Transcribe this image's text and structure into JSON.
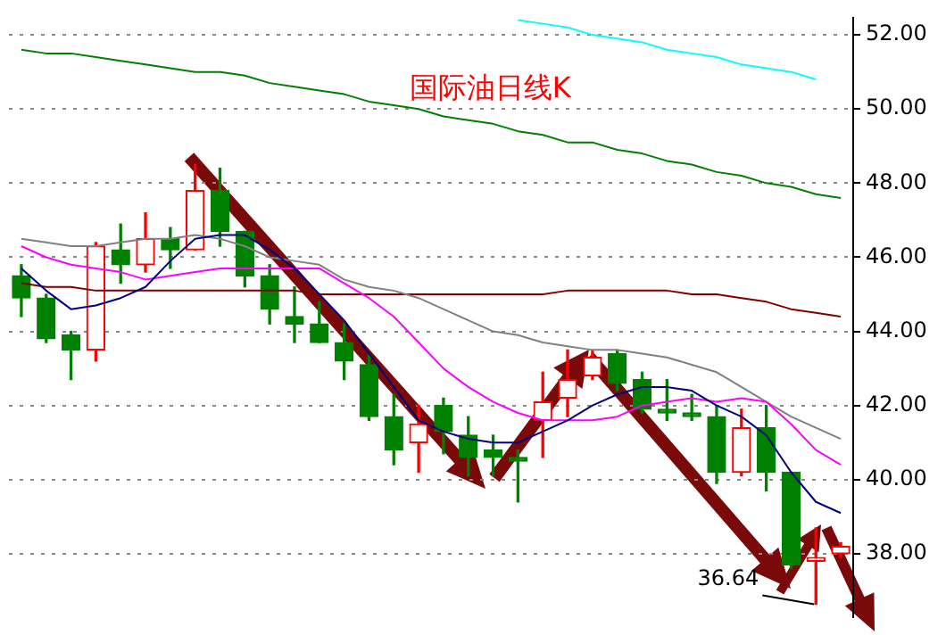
{
  "chart_data": {
    "type": "candlestick",
    "title": "国际油日线K",
    "categories": [
      null,
      null,
      null,
      null,
      null,
      null,
      null,
      null,
      null,
      null,
      null,
      null,
      null,
      null,
      null,
      null,
      null,
      null,
      null,
      null,
      null,
      null,
      null,
      null,
      null,
      null,
      null,
      null,
      null,
      null,
      null,
      null,
      null,
      null
    ],
    "ohlc": [
      [
        45.5,
        45.8,
        44.4,
        44.9
      ],
      [
        44.9,
        45.0,
        43.7,
        43.8
      ],
      [
        43.9,
        44.0,
        42.7,
        43.5
      ],
      [
        43.5,
        46.4,
        43.2,
        46.3
      ],
      [
        46.2,
        46.9,
        45.3,
        45.8
      ],
      [
        45.8,
        47.2,
        45.6,
        46.5
      ],
      [
        46.5,
        46.8,
        45.7,
        46.2
      ],
      [
        46.2,
        48.5,
        46.2,
        47.8
      ],
      [
        47.8,
        48.4,
        46.3,
        46.7
      ],
      [
        46.7,
        46.7,
        45.2,
        45.5
      ],
      [
        45.5,
        45.8,
        44.2,
        44.6
      ],
      [
        44.4,
        45.2,
        43.7,
        44.2
      ],
      [
        44.2,
        44.8,
        43.7,
        43.7
      ],
      [
        43.7,
        44.2,
        42.7,
        43.2
      ],
      [
        43.1,
        43.4,
        41.6,
        41.7
      ],
      [
        41.7,
        42.3,
        40.4,
        40.8
      ],
      [
        41.0,
        42.0,
        40.2,
        41.5
      ],
      [
        42.0,
        42.2,
        40.7,
        41.3
      ],
      [
        41.2,
        41.7,
        40.1,
        40.6
      ],
      [
        40.8,
        41.2,
        40.1,
        40.6
      ],
      [
        40.6,
        40.8,
        39.4,
        40.5
      ],
      [
        41.6,
        42.9,
        40.6,
        42.1
      ],
      [
        42.2,
        43.5,
        41.7,
        42.7
      ],
      [
        42.8,
        43.5,
        42.7,
        43.3
      ],
      [
        43.4,
        43.5,
        42.4,
        42.6
      ],
      [
        42.7,
        42.9,
        41.8,
        41.9
      ],
      [
        41.9,
        42.7,
        41.6,
        41.8
      ],
      [
        41.8,
        42.3,
        41.6,
        41.7
      ],
      [
        41.7,
        42.0,
        39.9,
        40.2
      ],
      [
        40.2,
        41.9,
        40.1,
        41.4
      ],
      [
        41.4,
        42.0,
        39.7,
        40.2
      ],
      [
        40.2,
        40.2,
        37.6,
        37.7
      ],
      [
        37.8,
        38.7,
        36.64,
        37.9
      ],
      [
        38.0,
        38.3,
        37.9,
        38.2
      ]
    ],
    "colors": [
      "#008000",
      "#008000",
      "#008000",
      "#ff0000",
      "#008000",
      "#ff0000",
      "#008000",
      "#ff0000",
      "#008000",
      "#008000",
      "#008000",
      "#008000",
      "#008000",
      "#008000",
      "#008000",
      "#008000",
      "#ff0000",
      "#008000",
      "#008000",
      "#008000",
      "#008000",
      "#ff0000",
      "#ff0000",
      "#ff0000",
      "#008000",
      "#008000",
      "#008000",
      "#008000",
      "#008000",
      "#ff0000",
      "#008000",
      "#008000",
      "#ff0000",
      "#ff0000"
    ],
    "series": [
      {
        "type": "line",
        "color": "#000080",
        "values": [
          45.7,
          45.1,
          44.6,
          44.7,
          44.9,
          45.2,
          45.9,
          46.5,
          46.6,
          46.6,
          46.2,
          45.7,
          45.0,
          44.3,
          43.4,
          42.5,
          41.6,
          41.3,
          41.1,
          41.0,
          41.0,
          41.3,
          41.6,
          42.0,
          42.3,
          42.5,
          42.5,
          42.4,
          42.0,
          41.7,
          41.2,
          40.2,
          39.4,
          39.1
        ]
      },
      {
        "type": "line",
        "color": "#ff00ff",
        "values": [
          46.3,
          46.0,
          45.8,
          45.7,
          45.6,
          45.4,
          45.5,
          45.6,
          45.7,
          45.7,
          45.7,
          45.7,
          45.7,
          45.3,
          44.9,
          44.4,
          43.7,
          43.0,
          42.5,
          42.1,
          41.8,
          41.6,
          41.6,
          41.6,
          41.7,
          42.0,
          42.1,
          42.2,
          42.1,
          42.2,
          42.1,
          41.5,
          40.8,
          40.4
        ]
      },
      {
        "type": "line",
        "color": "#808080",
        "values": [
          46.5,
          46.4,
          46.3,
          46.3,
          46.4,
          46.5,
          46.5,
          46.6,
          46.5,
          46.3,
          46.0,
          45.9,
          45.8,
          45.4,
          45.2,
          45.1,
          44.9,
          44.6,
          44.3,
          44.0,
          43.9,
          43.7,
          43.6,
          43.5,
          43.5,
          43.4,
          43.3,
          43.1,
          42.9,
          42.5,
          42.1,
          41.7,
          41.4,
          41.1
        ]
      },
      {
        "type": "line",
        "color": "#800000",
        "values": [
          45.3,
          45.2,
          45.2,
          45.1,
          45.1,
          45.1,
          45.1,
          45.1,
          45.1,
          45.1,
          45.1,
          45.1,
          45.0,
          45.0,
          45.0,
          45.0,
          45.0,
          45.0,
          45.0,
          45.0,
          45.0,
          45.0,
          45.1,
          45.1,
          45.1,
          45.1,
          45.1,
          45.0,
          45.0,
          44.9,
          44.8,
          44.6,
          44.5,
          44.4
        ]
      },
      {
        "type": "line",
        "color": "#008000",
        "values": [
          51.6,
          51.5,
          51.5,
          51.4,
          51.3,
          51.2,
          51.1,
          51.0,
          51.0,
          50.9,
          50.7,
          50.6,
          50.5,
          50.4,
          50.2,
          50.1,
          50.0,
          49.8,
          49.7,
          49.6,
          49.4,
          49.3,
          49.1,
          49.1,
          48.9,
          48.8,
          48.6,
          48.5,
          48.3,
          48.2,
          48.0,
          47.9,
          47.7,
          47.6
        ]
      },
      {
        "type": "line",
        "color": "#00ffff",
        "values": [
          null,
          null,
          null,
          null,
          null,
          null,
          null,
          null,
          null,
          null,
          null,
          null,
          null,
          null,
          null,
          null,
          null,
          null,
          null,
          null,
          52.4,
          52.3,
          52.2,
          52.0,
          51.9,
          51.8,
          51.6,
          51.5,
          51.4,
          51.2,
          51.1,
          51.0,
          50.8,
          null
        ]
      }
    ],
    "ylim": [
      36.3,
      52.45
    ],
    "yticks": [
      {
        "value": 38,
        "label": "38.00"
      },
      {
        "value": 40,
        "label": "40.00"
      },
      {
        "value": 42,
        "label": "42.00"
      },
      {
        "value": 44,
        "label": "44.00"
      },
      {
        "value": 46,
        "label": "46.00"
      },
      {
        "value": 48,
        "label": "48.00"
      },
      {
        "value": 50,
        "label": "50.00"
      },
      {
        "value": 52,
        "label": "52.00"
      }
    ],
    "grid": "y",
    "tick_labels": "y",
    "annotations": [
      "36.64"
    ]
  }
}
